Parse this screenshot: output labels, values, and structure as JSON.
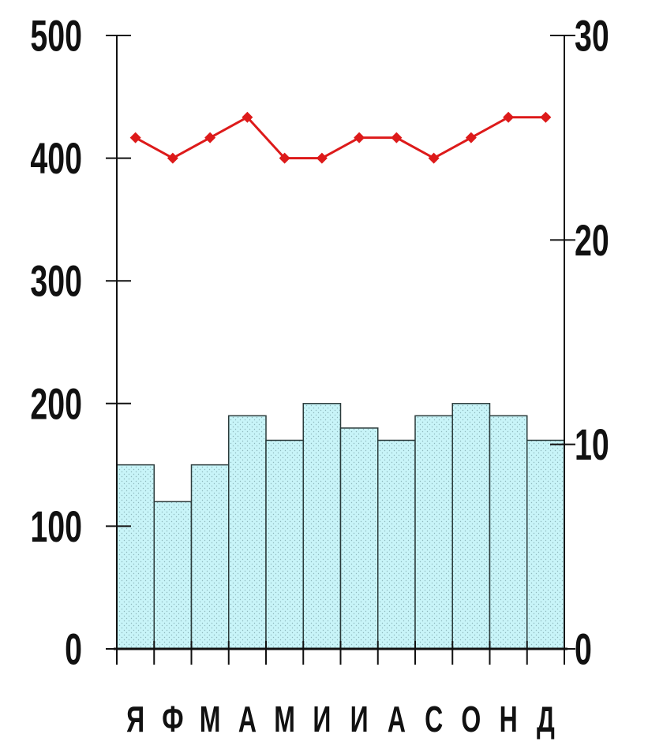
{
  "chart_data": {
    "type": "bar",
    "title": "",
    "xlabel": "",
    "ylabel": "",
    "categories": [
      "Я",
      "Ф",
      "М",
      "А",
      "М",
      "И",
      "И",
      "А",
      "С",
      "О",
      "Н",
      "Д"
    ],
    "left_axis": {
      "ylim": [
        0,
        500
      ],
      "ticks": [
        "0",
        "100",
        "200",
        "300",
        "400",
        "500"
      ]
    },
    "right_axis": {
      "ylim": [
        0,
        30
      ],
      "ticks": [
        "0",
        "10",
        "20",
        "30"
      ]
    },
    "series": [
      {
        "type": "bar",
        "axis": "left",
        "values": [
          150,
          120,
          150,
          190,
          170,
          200,
          180,
          170,
          190,
          200,
          190,
          170
        ]
      },
      {
        "type": "line",
        "axis": "right",
        "values": [
          25,
          24,
          25,
          26,
          24,
          24,
          25,
          25,
          24,
          25,
          26,
          26
        ]
      }
    ],
    "grid": false,
    "legend": "none",
    "colors": {
      "bar_fill": "#c8f4f8",
      "bar_stroke": "#2a3a3a",
      "bar_dots": "#8fb8bd",
      "line": "#dd1a1a",
      "axis": "#111111"
    }
  }
}
